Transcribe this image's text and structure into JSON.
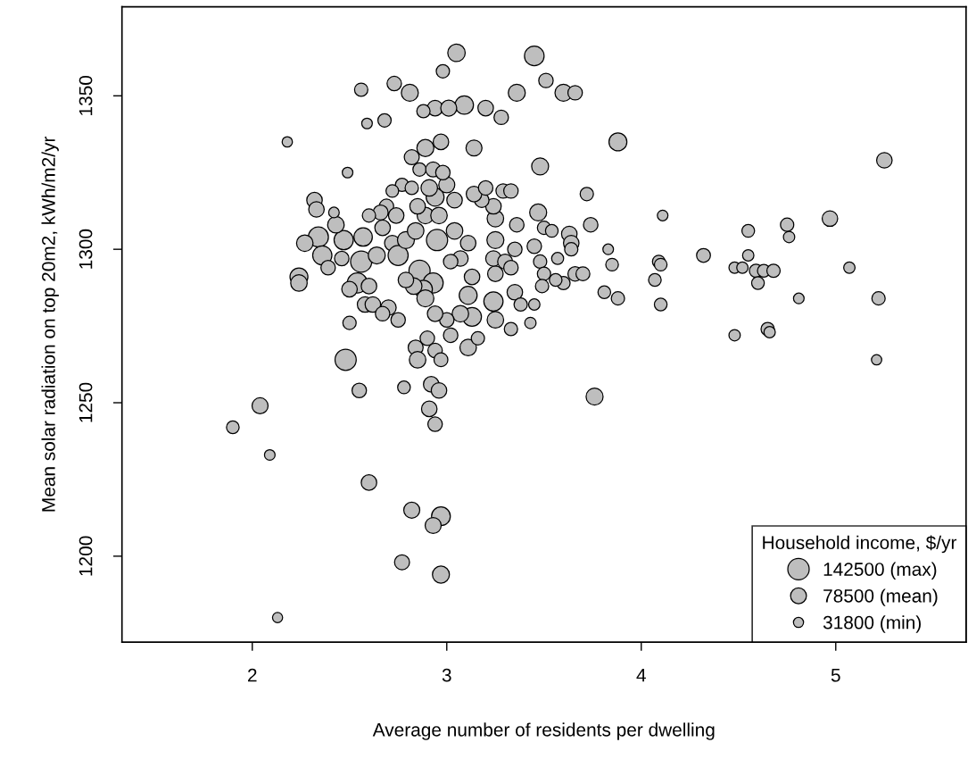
{
  "chart_data": {
    "type": "bubble",
    "xlabel": "Average number of residents per dwelling",
    "ylabel": "Mean solar radiation on top 20m2, kWh/m2/yr",
    "legend_title": "Household income, $/yr",
    "grid": false,
    "xlim": [
      1.33,
      5.67
    ],
    "ylim": [
      1172,
      1379
    ],
    "xticks": [
      2,
      3,
      4,
      5
    ],
    "yticks": [
      1200,
      1250,
      1300,
      1350
    ],
    "size_legend": [
      {
        "value": 142500,
        "label": "142500 (max)"
      },
      {
        "value": 78500,
        "label": "78500 (mean)"
      },
      {
        "value": 31800,
        "label": "31800 (min)"
      }
    ],
    "series": [
      {
        "color": "#bebebe",
        "x": [
          3.05,
          3.45,
          2.73,
          2.56,
          2.81,
          2.98,
          3.36,
          3.51,
          3.6,
          3.66,
          2.94,
          2.88,
          3.09,
          3.01,
          3.2,
          3.28,
          2.68,
          2.59,
          2.18,
          3.88,
          3.14,
          2.82,
          2.97,
          2.89,
          3.48,
          5.25,
          2.49,
          2.32,
          2.33,
          2.34,
          2.27,
          2.36,
          2.24,
          2.24,
          2.47,
          2.43,
          2.56,
          2.54,
          2.57,
          2.46,
          2.39,
          2.5,
          2.64,
          2.6,
          2.58,
          2.62,
          2.7,
          2.67,
          2.75,
          2.69,
          2.74,
          2.67,
          2.72,
          2.66,
          2.77,
          2.82,
          2.75,
          2.79,
          2.86,
          2.95,
          2.93,
          2.88,
          2.89,
          2.83,
          2.79,
          2.84,
          2.89,
          2.96,
          2.94,
          2.91,
          2.85,
          3.0,
          3.04,
          3.04,
          3.07,
          3.11,
          3.02,
          3.13,
          3.11,
          3.13,
          3.07,
          3.0,
          2.94,
          3.02,
          3.11,
          3.16,
          3.24,
          3.25,
          3.25,
          3.24,
          3.25,
          3.25,
          3.24,
          3.18,
          3.14,
          3.2,
          3.29,
          3.33,
          3.3,
          3.33,
          3.36,
          3.35,
          3.35,
          3.38,
          3.33,
          3.43,
          3.45,
          3.47,
          3.5,
          3.45,
          3.48,
          3.5,
          3.49,
          3.54,
          3.63,
          3.64,
          3.64,
          3.57,
          3.6,
          3.56,
          3.66,
          3.7,
          3.72,
          3.74,
          3.81,
          3.83,
          3.85,
          3.88,
          3.76,
          4.11,
          4.09,
          4.1,
          4.07,
          4.1,
          4.32,
          4.48,
          4.48,
          4.52,
          4.55,
          4.55,
          4.59,
          4.63,
          4.68,
          4.6,
          4.65,
          4.66,
          4.75,
          4.76,
          4.81,
          4.97,
          5.07,
          5.22,
          5.21,
          2.48,
          2.55,
          2.5,
          2.78,
          2.92,
          2.96,
          2.91,
          2.94,
          2.04,
          1.9,
          2.09,
          2.6,
          2.82,
          2.97,
          2.93,
          2.77,
          2.97,
          2.13,
          2.84,
          2.9,
          2.85,
          2.94,
          2.97,
          2.86,
          2.93,
          2.98,
          2.6,
          2.72,
          2.42
        ],
        "values": [
          1364,
          1363,
          1354,
          1352,
          1351,
          1358,
          1351,
          1355,
          1351,
          1351,
          1346,
          1345,
          1347,
          1346,
          1346,
          1343,
          1342,
          1341,
          1335,
          1335,
          1333,
          1330,
          1335,
          1333,
          1327,
          1329,
          1325,
          1316,
          1313,
          1304,
          1302,
          1298,
          1291,
          1289,
          1303,
          1308,
          1296,
          1289,
          1304,
          1297,
          1294,
          1287,
          1298,
          1288,
          1282,
          1282,
          1281,
          1279,
          1277,
          1314,
          1311,
          1307,
          1302,
          1312,
          1321,
          1320,
          1298,
          1303,
          1293,
          1303,
          1289,
          1287,
          1284,
          1288,
          1290,
          1306,
          1311,
          1311,
          1317,
          1320,
          1314,
          1321,
          1316,
          1306,
          1297,
          1302,
          1296,
          1291,
          1285,
          1278,
          1279,
          1277,
          1279,
          1272,
          1268,
          1271,
          1283,
          1277,
          1292,
          1297,
          1303,
          1310,
          1314,
          1316,
          1318,
          1320,
          1319,
          1319,
          1296,
          1294,
          1308,
          1300,
          1286,
          1282,
          1274,
          1276,
          1282,
          1312,
          1307,
          1301,
          1296,
          1292,
          1288,
          1306,
          1305,
          1302,
          1300,
          1297,
          1289,
          1290,
          1292,
          1292,
          1318,
          1308,
          1286,
          1300,
          1295,
          1284,
          1252,
          1311,
          1296,
          1295,
          1290,
          1282,
          1298,
          1272,
          1294,
          1294,
          1306,
          1298,
          1293,
          1293,
          1293,
          1289,
          1274,
          1273,
          1308,
          1304,
          1284,
          1310,
          1294,
          1284,
          1264,
          1264,
          1254,
          1276,
          1255,
          1256,
          1254,
          1248,
          1243,
          1249,
          1242,
          1233,
          1224,
          1215,
          1213,
          1210,
          1198,
          1194,
          1180,
          1268,
          1271,
          1264,
          1267,
          1264,
          1326,
          1326,
          1325,
          1311,
          1319,
          1312
        ],
        "sizes": [
          95000,
          120000,
          65000,
          55000,
          90000,
          55000,
          90000,
          65000,
          90000,
          65000,
          75000,
          55000,
          105000,
          80000,
          75000,
          65000,
          55000,
          35000,
          33000,
          100000,
          80000,
          70000,
          75000,
          90000,
          90000,
          75000,
          35000,
          75000,
          75000,
          125000,
          85000,
          115000,
          100000,
          85000,
          115000,
          85000,
          140000,
          125000,
          105000,
          65000,
          65000,
          75000,
          90000,
          75000,
          75000,
          75000,
          75000,
          65000,
          65000,
          65000,
          75000,
          75000,
          75000,
          70000,
          55000,
          55000,
          125000,
          90000,
          140000,
          140000,
          125000,
          100000,
          90000,
          85000,
          75000,
          85000,
          85000,
          85000,
          100000,
          85000,
          75000,
          80000,
          75000,
          85000,
          75000,
          75000,
          65000,
          75000,
          100000,
          110000,
          85000,
          65000,
          75000,
          65000,
          85000,
          55000,
          115000,
          85000,
          75000,
          75000,
          90000,
          85000,
          75000,
          65000,
          75000,
          65000,
          65000,
          65000,
          70000,
          65000,
          65000,
          65000,
          75000,
          55000,
          55000,
          40000,
          40000,
          90000,
          55000,
          65000,
          55000,
          55000,
          55000,
          50000,
          75000,
          75000,
          55000,
          45000,
          55000,
          50000,
          65000,
          60000,
          55000,
          65000,
          50000,
          35000,
          50000,
          55000,
          90000,
          35000,
          50000,
          50000,
          50000,
          50000,
          60000,
          40000,
          40000,
          40000,
          50000,
          40000,
          55000,
          50000,
          55000,
          50000,
          55000,
          40000,
          55000,
          40000,
          35000,
          75000,
          40000,
          55000,
          33000,
          140000,
          65000,
          55000,
          50000,
          75000,
          75000,
          75000,
          65000,
          80000,
          50000,
          35000,
          75000,
          80000,
          110000,
          80000,
          70000,
          90000,
          32000,
          70000,
          65000,
          85000,
          65000,
          60000,
          55000,
          70000,
          65000,
          55000,
          50000,
          35000
        ]
      }
    ]
  }
}
